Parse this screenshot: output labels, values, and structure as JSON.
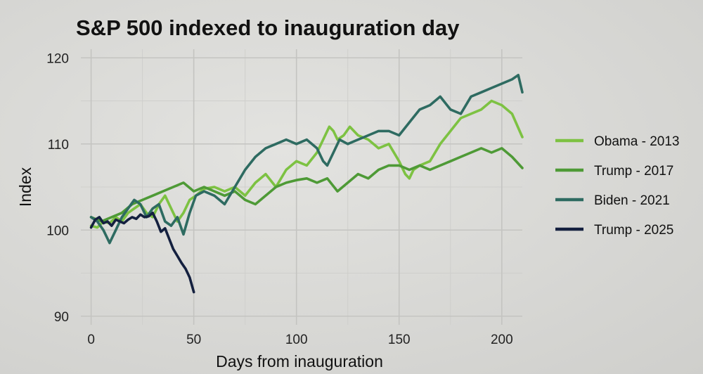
{
  "chart_data": {
    "type": "line",
    "title": "S&P 500 indexed to inauguration day",
    "xlabel": "Days from inauguration",
    "ylabel": "Index",
    "xlim": [
      -5,
      210
    ],
    "ylim": [
      89,
      121
    ],
    "xticks": [
      0,
      50,
      100,
      150,
      200
    ],
    "yticks": [
      90,
      100,
      110,
      120
    ],
    "grid": true,
    "legend_position": "right",
    "series": [
      {
        "name": "Obama - 2013",
        "color": "#7dc242",
        "x": [
          0,
          3,
          6,
          9,
          12,
          15,
          18,
          21,
          24,
          27,
          30,
          33,
          36,
          39,
          42,
          45,
          48,
          51,
          55,
          60,
          65,
          70,
          75,
          80,
          85,
          90,
          95,
          100,
          105,
          110,
          113,
          116,
          118,
          120,
          123,
          126,
          130,
          135,
          140,
          145,
          150,
          153,
          155,
          157,
          160,
          165,
          170,
          175,
          180,
          185,
          190,
          195,
          200,
          205,
          210
        ],
        "y": [
          100.5,
          100.3,
          101.0,
          100.8,
          101.5,
          101.0,
          102.0,
          102.5,
          103.0,
          102.0,
          101.5,
          103.0,
          104.0,
          102.5,
          101.0,
          102.0,
          103.5,
          104.0,
          104.8,
          105.0,
          104.5,
          105.0,
          104.0,
          105.5,
          106.5,
          105.0,
          107.0,
          108.0,
          107.5,
          109.0,
          110.5,
          112.0,
          111.5,
          110.5,
          111.0,
          112.0,
          111.0,
          110.5,
          109.5,
          110.0,
          108.0,
          106.5,
          106.0,
          107.0,
          107.5,
          108.0,
          110.0,
          111.5,
          113.0,
          113.5,
          114.0,
          115.0,
          114.5,
          113.5,
          110.8
        ]
      },
      {
        "name": "Trump - 2017",
        "color": "#4e9a36",
        "x": [
          0,
          5,
          10,
          15,
          20,
          25,
          30,
          35,
          40,
          45,
          50,
          55,
          60,
          65,
          70,
          75,
          80,
          85,
          90,
          95,
          100,
          105,
          110,
          115,
          120,
          125,
          130,
          135,
          140,
          145,
          150,
          155,
          160,
          165,
          170,
          175,
          180,
          185,
          190,
          195,
          200,
          205,
          210
        ],
        "y": [
          101.5,
          101.0,
          101.5,
          102.0,
          103.0,
          103.5,
          104.0,
          104.5,
          105.0,
          105.5,
          104.5,
          105.0,
          104.5,
          104.0,
          104.5,
          103.5,
          103.0,
          104.0,
          105.0,
          105.5,
          105.8,
          106.0,
          105.5,
          106.0,
          104.5,
          105.5,
          106.5,
          106.0,
          107.0,
          107.5,
          107.5,
          107.0,
          107.5,
          107.0,
          107.5,
          108.0,
          108.5,
          109.0,
          109.5,
          109.0,
          109.5,
          108.5,
          107.2
        ]
      },
      {
        "name": "Biden - 2021",
        "color": "#2e6b61",
        "x": [
          0,
          3,
          6,
          9,
          12,
          15,
          18,
          21,
          24,
          27,
          30,
          33,
          36,
          39,
          42,
          45,
          48,
          51,
          55,
          60,
          65,
          70,
          75,
          80,
          85,
          90,
          95,
          100,
          105,
          110,
          113,
          115,
          118,
          121,
          125,
          130,
          135,
          140,
          145,
          150,
          155,
          160,
          165,
          170,
          175,
          180,
          185,
          190,
          195,
          200,
          205,
          208,
          210
        ],
        "y": [
          101.5,
          101.0,
          100.0,
          98.5,
          100.0,
          101.5,
          102.5,
          103.5,
          103.0,
          101.5,
          102.5,
          103.0,
          101.0,
          100.5,
          101.5,
          99.5,
          102.0,
          104.0,
          104.5,
          104.0,
          103.0,
          105.0,
          107.0,
          108.5,
          109.5,
          110.0,
          110.5,
          110.0,
          110.5,
          109.5,
          108.0,
          107.5,
          109.0,
          110.5,
          110.0,
          110.5,
          111.0,
          111.5,
          111.5,
          111.0,
          112.5,
          114.0,
          114.5,
          115.5,
          114.0,
          113.5,
          115.5,
          116.0,
          116.5,
          117.0,
          117.5,
          118.0,
          116.0
        ]
      },
      {
        "name": "Trump - 2025",
        "color": "#14203f",
        "x": [
          0,
          2,
          4,
          6,
          8,
          10,
          12,
          14,
          16,
          18,
          20,
          22,
          24,
          26,
          28,
          30,
          32,
          34,
          36,
          38,
          40,
          42,
          44,
          46,
          48,
          50
        ],
        "y": [
          100.3,
          101.2,
          101.5,
          100.8,
          101.0,
          100.5,
          101.2,
          101.0,
          100.8,
          101.2,
          101.5,
          101.3,
          101.8,
          101.5,
          101.6,
          102.0,
          101.0,
          99.8,
          100.2,
          99.0,
          97.8,
          97.0,
          96.2,
          95.5,
          94.5,
          92.8
        ]
      }
    ]
  }
}
